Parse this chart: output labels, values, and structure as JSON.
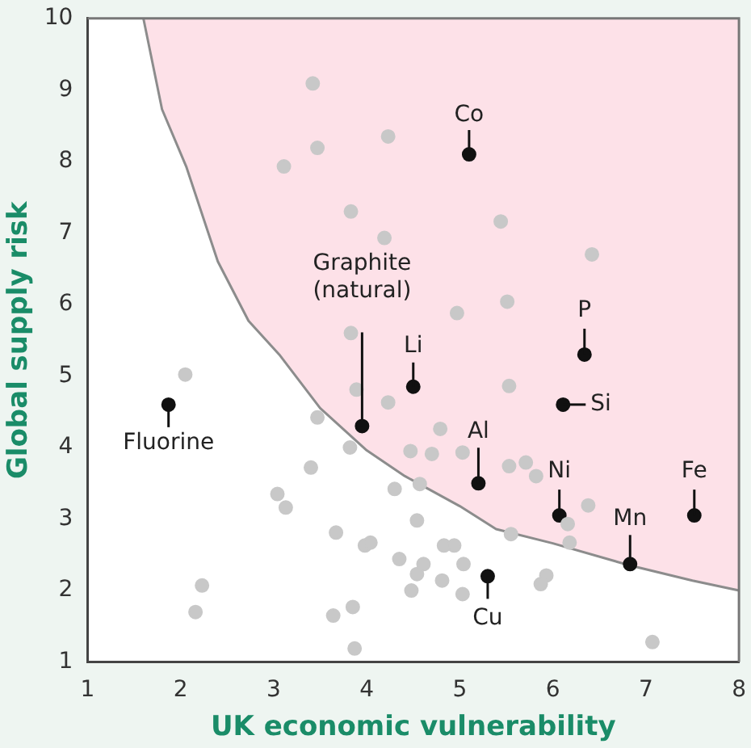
{
  "chart_data": {
    "type": "scatter",
    "xlabel": "UK economic vulnerability",
    "ylabel": "Global supply risk",
    "xlim": [
      1,
      8
    ],
    "ylim": [
      1,
      10
    ],
    "xticks": [
      1,
      2,
      3,
      4,
      5,
      6,
      7,
      8
    ],
    "yticks": [
      1,
      2,
      3,
      4,
      5,
      6,
      7,
      8,
      9,
      10
    ],
    "grid": false,
    "legend": false,
    "series": [
      {
        "type": "line",
        "color": "#8c8c8c",
        "marker": "none",
        "x": [
          1.6,
          1.8,
          2.06,
          2.4,
          2.73,
          3.06,
          3.5,
          4.0,
          4.41,
          5.0,
          5.39,
          6.0,
          6.83,
          7.5,
          8
        ],
        "values": [
          10,
          8.73,
          7.93,
          6.6,
          5.77,
          5.3,
          4.55,
          3.96,
          3.6,
          3.18,
          2.86,
          2.66,
          2.35,
          2.14,
          2.0
        ],
        "lower": [
          10,
          8.73,
          7.93,
          6.6,
          5.77,
          5.3,
          4.55,
          3.96,
          3.6,
          3.18,
          2.86,
          2.66,
          2.35,
          2.14,
          2.0
        ],
        "upper": [
          10,
          10,
          10,
          10,
          10,
          10,
          10,
          10,
          10,
          10,
          10,
          10,
          10,
          10,
          10
        ]
      },
      {
        "color": "#c8c8c8",
        "marker": "circle",
        "x": [
          3.42,
          4.23,
          3.47,
          3.11,
          3.83,
          4.19,
          5.44,
          6.42,
          4.97,
          5.51,
          2.05,
          3.83,
          3.89,
          4.23,
          3.47,
          3.82,
          4.47,
          3.4,
          3.04,
          3.13,
          3.67,
          3.98,
          4.04,
          4.35,
          4.48,
          2.23,
          2.16,
          3.64,
          3.85,
          3.87,
          5.53,
          4.79,
          4.7,
          5.03,
          5.53,
          5.71,
          5.82,
          6.38,
          6.16,
          6.18,
          5.55,
          4.57,
          4.3,
          4.54,
          4.83,
          4.94,
          5.04,
          4.61,
          4.54,
          4.81,
          5.03,
          5.93,
          5.87,
          7.07
        ],
        "values": [
          9.09,
          8.35,
          8.19,
          7.93,
          7.3,
          6.93,
          7.16,
          6.7,
          5.88,
          6.04,
          5.02,
          5.6,
          4.81,
          4.63,
          4.42,
          4.0,
          3.95,
          3.72,
          3.35,
          3.16,
          2.81,
          2.63,
          2.67,
          2.44,
          2.0,
          2.07,
          1.7,
          1.65,
          1.77,
          1.19,
          4.86,
          4.26,
          3.91,
          3.93,
          3.74,
          3.79,
          3.6,
          3.19,
          2.93,
          2.67,
          2.79,
          3.49,
          3.42,
          2.98,
          2.63,
          2.63,
          2.37,
          2.37,
          2.23,
          2.14,
          1.95,
          2.21,
          2.09,
          1.28
        ]
      },
      {
        "color": "#111111",
        "marker": "circle",
        "x": [
          5.1,
          3.95,
          4.5,
          1.87,
          5.2,
          5.3,
          6.34,
          6.11,
          6.07,
          6.83,
          7.52
        ],
        "values": [
          8.1,
          4.3,
          4.85,
          4.6,
          3.5,
          2.2,
          5.3,
          4.6,
          3.05,
          2.37,
          3.05
        ]
      }
    ],
    "annotations": [
      {
        "text": "Co",
        "x": 5.1,
        "y": 8.1
      },
      {
        "text": "Graphite\n(natural)",
        "x": 3.95,
        "y": 4.3
      },
      {
        "text": "Li",
        "x": 4.5,
        "y": 4.85
      },
      {
        "text": "Fluorine",
        "x": 1.87,
        "y": 4.6
      },
      {
        "text": "Al",
        "x": 5.2,
        "y": 3.5
      },
      {
        "text": "Cu",
        "x": 5.3,
        "y": 2.2
      },
      {
        "text": "P",
        "x": 6.34,
        "y": 5.3
      },
      {
        "text": "Si",
        "x": 6.11,
        "y": 4.6
      },
      {
        "text": "Ni",
        "x": 6.07,
        "y": 3.05
      },
      {
        "text": "Mn",
        "x": 6.83,
        "y": 2.37
      },
      {
        "text": "Fe",
        "x": 7.52,
        "y": 3.05
      }
    ]
  }
}
